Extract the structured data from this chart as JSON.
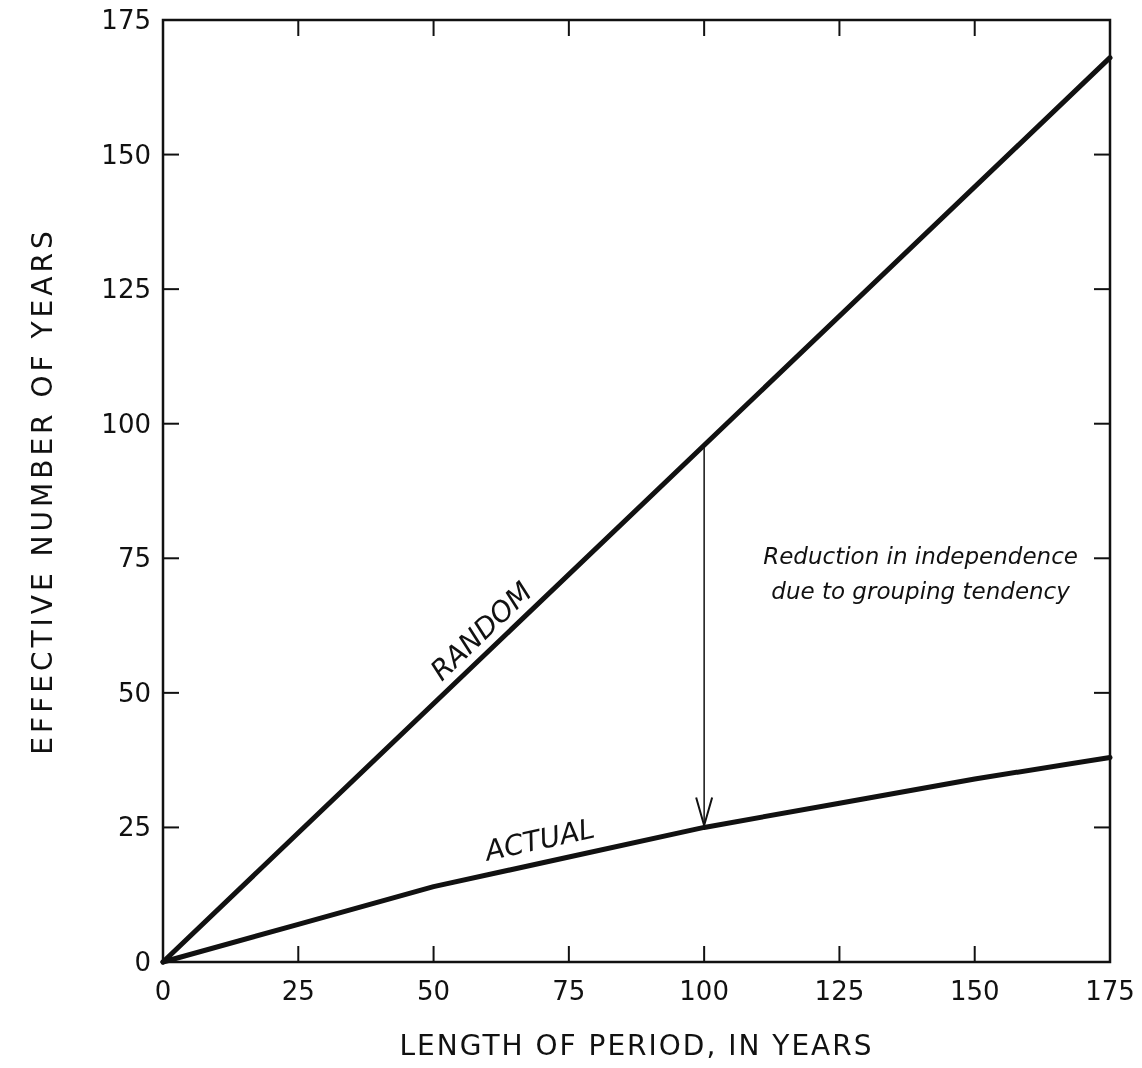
{
  "chart_data": {
    "type": "line",
    "xlabel": "LENGTH OF PERIOD, IN YEARS",
    "ylabel": "EFFECTIVE NUMBER OF YEARS",
    "xlim": [
      0,
      175
    ],
    "ylim": [
      0,
      175
    ],
    "xticks": [
      0,
      25,
      50,
      75,
      100,
      125,
      150,
      175
    ],
    "yticks": [
      0,
      25,
      50,
      75,
      100,
      125,
      150,
      175
    ],
    "grid": false,
    "marker": "none",
    "line_style": "solid",
    "series": [
      {
        "name": "RANDOM",
        "color": "#111111",
        "x": [
          0,
          100,
          175
        ],
        "values": [
          0,
          96,
          168
        ]
      },
      {
        "name": "ACTUAL",
        "color": "#111111",
        "x": [
          0,
          25,
          50,
          75,
          100,
          125,
          150,
          175
        ],
        "values": [
          0,
          7,
          14,
          19.5,
          25,
          29.5,
          34,
          38
        ]
      }
    ],
    "annotations": [
      "Reduction in independence due to grouping tendency"
    ]
  }
}
